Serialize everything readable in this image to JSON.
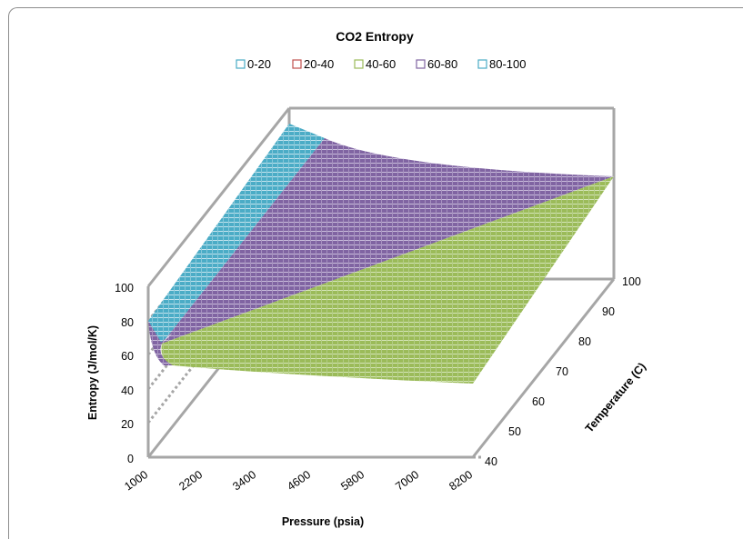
{
  "chart_data": {
    "type": "surface",
    "title": "CO2 Entropy",
    "xlabel": "Pressure (psia)",
    "ylabel": "Temperature (C)",
    "zlabel": "Entropy (J/mol/K)",
    "x_ticks": [
      "1000",
      "2200",
      "3400",
      "4600",
      "5800",
      "7000",
      "8200"
    ],
    "y_ticks": [
      "40",
      "50",
      "60",
      "70",
      "80",
      "90",
      "100"
    ],
    "z_ticks": [
      "0",
      "20",
      "40",
      "60",
      "80",
      "100"
    ],
    "zlim": [
      0,
      100
    ],
    "legend_position": "top",
    "legend": [
      {
        "label": "0-20",
        "color": "#4aacc6"
      },
      {
        "label": "20-40",
        "color": "#c0504d"
      },
      {
        "label": "40-60",
        "color": "#9bbb59"
      },
      {
        "label": "60-80",
        "color": "#8064a2"
      },
      {
        "label": "80-100",
        "color": "#4bacc6"
      }
    ],
    "surface_corners": [
      {
        "pressure": 1000,
        "temperature": 40,
        "entropy": 60
      },
      {
        "pressure": 8200,
        "temperature": 40,
        "entropy": 43
      },
      {
        "pressure": 1000,
        "temperature": 100,
        "entropy": 100
      },
      {
        "pressure": 8200,
        "temperature": 100,
        "entropy": 58
      }
    ],
    "colors": {
      "band_40_60": "#9bbb59",
      "band_60_80": "#8064a2",
      "band_80_100": "#4bacc6",
      "wall": "#a6a6a6"
    }
  }
}
